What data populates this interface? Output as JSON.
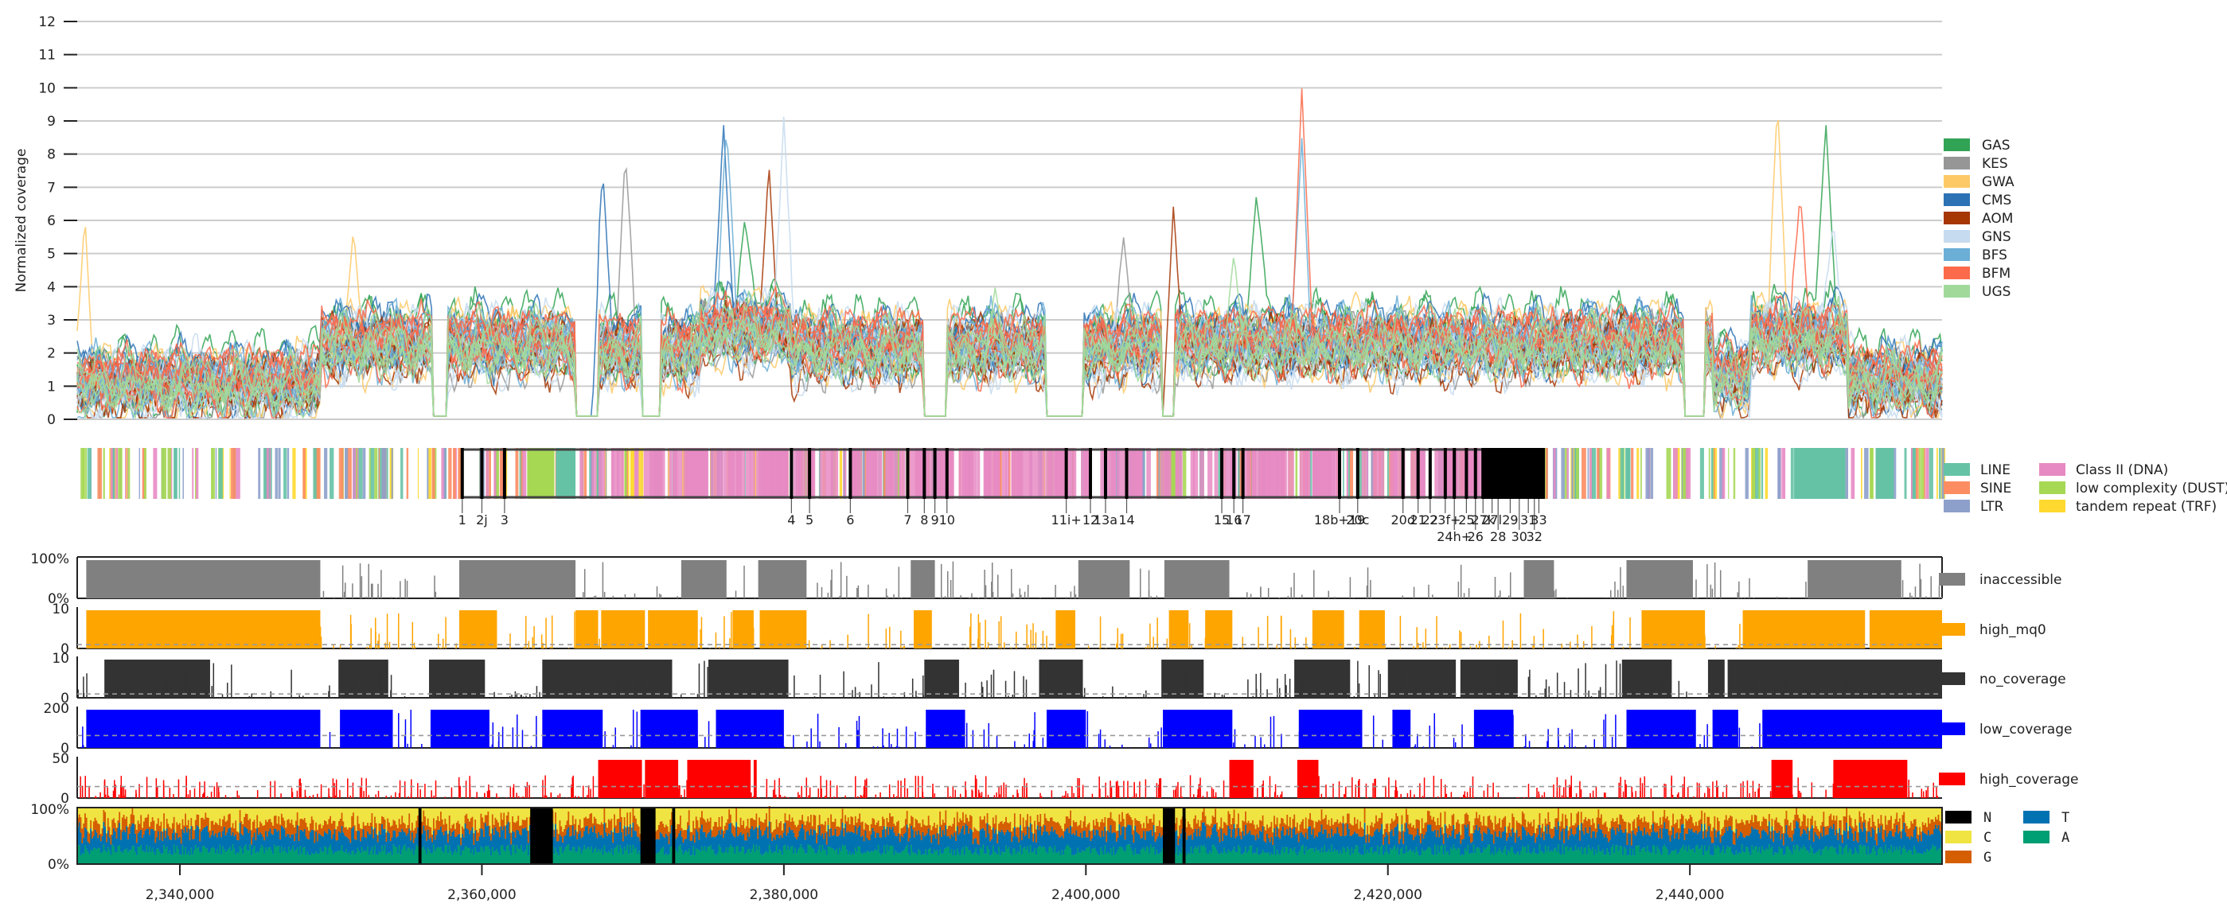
{
  "colors": {
    "GAS": "#31a354",
    "KES": "#969696",
    "GWA": "#fdc966",
    "CMS": "#2c72b5",
    "AOM": "#a63603",
    "GNS": "#c6dbef",
    "BFS": "#6baed6",
    "BFM": "#fb6a4a",
    "UGS": "#a1d99b",
    "LINE": "#66c2a5",
    "SINE": "#fc8d62",
    "LTR": "#8da0cb",
    "Class II (DNA)": "#e78ac3",
    "low complexity (DUST)": "#a6d854",
    "tandem repeat (TRF)": "#ffd92f",
    "inaccessible": "#808080",
    "high_mq0": "#ffa500",
    "no_coverage": "#333333",
    "low_coverage": "#0000ff",
    "high_coverage": "#ff0000",
    "N": "#000000",
    "C": "#f0e442",
    "G": "#d55e00",
    "T": "#0072b2",
    "A": "#009e73"
  },
  "chart_data": [
    {
      "type": "line",
      "ylabel": "Normalized coverage",
      "ylim": [
        0,
        12
      ],
      "yticks": [
        "0",
        "1",
        "2",
        "3",
        "4",
        "5",
        "6",
        "7",
        "8",
        "9",
        "10",
        "11",
        "12"
      ],
      "grid": true,
      "legend_placement": "right",
      "xlim": [
        2333200,
        2456700
      ],
      "series": [
        {
          "name": "GAS",
          "peaks": [
            [
              2411300,
              6.8
            ],
            [
              2449000,
              9.0
            ],
            [
              2377400,
              6.0
            ]
          ]
        },
        {
          "name": "KES",
          "peaks": [
            [
              2369500,
              8.0
            ],
            [
              2402500,
              5.5
            ]
          ]
        },
        {
          "name": "GWA",
          "peaks": [
            [
              2333700,
              6.2
            ],
            [
              2445800,
              9.6
            ],
            [
              2351500,
              5.8
            ]
          ]
        },
        {
          "name": "CMS",
          "peaks": [
            [
              2376000,
              9.0
            ],
            [
              2368000,
              7.5
            ]
          ]
        },
        {
          "name": "AOM",
          "peaks": [
            [
              2379000,
              7.8
            ],
            [
              2405800,
              6.5
            ]
          ]
        },
        {
          "name": "GNS",
          "peaks": [
            [
              2380000,
              9.2
            ],
            [
              2449500,
              6.0
            ]
          ]
        },
        {
          "name": "BFS",
          "peaks": [
            [
              2376200,
              8.8
            ],
            [
              2414300,
              8.5
            ]
          ]
        },
        {
          "name": "BFM",
          "peaks": [
            [
              2414300,
              10.0
            ],
            [
              2447300,
              6.8
            ]
          ]
        },
        {
          "name": "UGS",
          "peaks": [
            [
              2394000,
              4.0
            ],
            [
              2409800,
              5.0
            ]
          ]
        }
      ],
      "dip_regions": [
        [
          2356700,
          2357700
        ],
        [
          2366200,
          2367700
        ],
        [
          2370600,
          2371800
        ],
        [
          2389300,
          2390800
        ],
        [
          2397300,
          2399800
        ],
        [
          2405000,
          2405900
        ],
        [
          2439600,
          2441000
        ]
      ]
    },
    {
      "type": "bar",
      "title": "",
      "legend": [
        "LINE",
        "SINE",
        "LTR",
        "Class II (DNA)",
        "low complexity (DUST)",
        "tandem repeat (TRF)"
      ],
      "gene_box": [
        2358700,
        2427000
      ],
      "features": [
        {
          "label": "1",
          "x": 2358700
        },
        {
          "label": "2j",
          "x": 2360000
        },
        {
          "label": "3",
          "x": 2361500
        },
        {
          "label": "4",
          "x": 2380500
        },
        {
          "label": "5",
          "x": 2381700
        },
        {
          "label": "6",
          "x": 2384400
        },
        {
          "label": "7",
          "x": 2388200
        },
        {
          "label": "8",
          "x": 2389300
        },
        {
          "label": "9",
          "x": 2390000
        },
        {
          "label": "10",
          "x": 2390800
        },
        {
          "label": "11i+",
          "x": 2398700
        },
        {
          "label": "12",
          "x": 2400300
        },
        {
          "label": "13a",
          "x": 2401300
        },
        {
          "label": "14",
          "x": 2402700
        },
        {
          "label": "15",
          "x": 2409000
        },
        {
          "label": "16",
          "x": 2409800
        },
        {
          "label": "17",
          "x": 2410400
        },
        {
          "label": "18b+19",
          "x": 2416800
        },
        {
          "label": "20c",
          "x": 2418000
        },
        {
          "label": "20d",
          "x": 2421000
        },
        {
          "label": "21",
          "x": 2422000
        },
        {
          "label": "22",
          "x": 2422800
        },
        {
          "label": "23f+",
          "x": 2423800
        },
        {
          "label": "24h+",
          "x": 2424400
        },
        {
          "label": "25",
          "x": 2425200
        },
        {
          "label": "26",
          "x": 2425800
        },
        {
          "label": "27k",
          "x": 2426300
        },
        {
          "label": "27l",
          "x": 2426900
        },
        {
          "label": "28",
          "x": 2427300
        },
        {
          "label": "29",
          "x": 2428100
        },
        {
          "label": "30",
          "x": 2428700
        },
        {
          "label": "31",
          "x": 2429300
        },
        {
          "label": "32",
          "x": 2429700
        },
        {
          "label": "33",
          "x": 2430000
        }
      ],
      "repeat_blocks": [
        {
          "type": "low complexity (DUST)",
          "start": 2363000,
          "end": 2364800
        },
        {
          "type": "LINE",
          "start": 2364900,
          "end": 2366200
        },
        {
          "type": "LINE",
          "start": 2446900,
          "end": 2450300
        },
        {
          "type": "Class II (DNA)",
          "start": 2378600,
          "end": 2380300
        },
        {
          "type": "Class II (DNA)",
          "start": 2415000,
          "end": 2416300
        },
        {
          "type": "low complexity (DUST)",
          "start": 2405200,
          "end": 2406200
        },
        {
          "type": "LINE",
          "start": 2452300,
          "end": 2453500
        }
      ]
    },
    {
      "type": "area",
      "name": "inaccessible",
      "ylim": [
        0,
        1
      ],
      "yticks": [
        "0%",
        "100%"
      ],
      "blocks": [
        [
          2333800,
          2349300
        ],
        [
          2358500,
          2366200
        ],
        [
          2373200,
          2376200
        ],
        [
          2378300,
          2381500
        ],
        [
          2388400,
          2390000
        ],
        [
          2399500,
          2402900
        ],
        [
          2405200,
          2409500
        ],
        [
          2429000,
          2431000
        ],
        [
          2435800,
          2440200
        ],
        [
          2447800,
          2454000
        ]
      ]
    },
    {
      "type": "area",
      "name": "high_mq0",
      "ylim": [
        0,
        10
      ],
      "yticks": [
        "0",
        "10"
      ],
      "threshold": 1,
      "blocks": [
        [
          2333800,
          2349300
        ],
        [
          2358500,
          2361000
        ],
        [
          2366200,
          2367700
        ],
        [
          2367900,
          2370800
        ],
        [
          2371000,
          2374300
        ],
        [
          2376600,
          2378000
        ],
        [
          2378400,
          2381500
        ],
        [
          2388600,
          2389800
        ],
        [
          2398000,
          2399300
        ],
        [
          2405500,
          2406800
        ],
        [
          2407900,
          2409700
        ],
        [
          2415000,
          2417100
        ],
        [
          2418100,
          2419800
        ],
        [
          2436800,
          2441000
        ],
        [
          2443500,
          2451600
        ],
        [
          2451900,
          2456700
        ]
      ]
    },
    {
      "type": "area",
      "name": "no_coverage",
      "ylim": [
        0,
        10
      ],
      "yticks": [
        "0",
        "10"
      ],
      "threshold": 1,
      "blocks": [
        [
          2335000,
          2342000
        ],
        [
          2350500,
          2353800
        ],
        [
          2356500,
          2360200
        ],
        [
          2364000,
          2372600
        ],
        [
          2375000,
          2380300
        ],
        [
          2389300,
          2391600
        ],
        [
          2396900,
          2399800
        ],
        [
          2405000,
          2407800
        ],
        [
          2413800,
          2417500
        ],
        [
          2420000,
          2424500
        ],
        [
          2424800,
          2428600
        ],
        [
          2435500,
          2438800
        ],
        [
          2441200,
          2442300
        ],
        [
          2442500,
          2456700
        ]
      ]
    },
    {
      "type": "area",
      "name": "low_coverage",
      "ylim": [
        0,
        200
      ],
      "yticks": [
        "0",
        "200"
      ],
      "threshold": 65,
      "blocks": [
        [
          2333800,
          2349300
        ],
        [
          2350600,
          2354100
        ],
        [
          2356600,
          2360500
        ],
        [
          2364000,
          2368000
        ],
        [
          2370500,
          2374300
        ],
        [
          2375500,
          2380000
        ],
        [
          2389400,
          2392000
        ],
        [
          2397400,
          2400000
        ],
        [
          2405100,
          2409700
        ],
        [
          2414100,
          2418300
        ],
        [
          2420300,
          2421500
        ],
        [
          2425700,
          2428300
        ],
        [
          2435800,
          2440400
        ],
        [
          2441500,
          2443200
        ],
        [
          2444800,
          2456700
        ]
      ]
    },
    {
      "type": "area",
      "name": "high_coverage",
      "ylim": [
        0,
        50
      ],
      "yticks": [
        "0",
        "50"
      ],
      "threshold": 15,
      "blocks": [
        [
          2367700,
          2370600
        ],
        [
          2370800,
          2373000
        ],
        [
          2373600,
          2377800
        ],
        [
          2378000,
          2378200
        ],
        [
          2409500,
          2411100
        ],
        [
          2414000,
          2415400
        ],
        [
          2449500,
          2454400
        ],
        [
          2445400,
          2446800
        ]
      ]
    },
    {
      "type": "area",
      "name": "base composition",
      "ylim": [
        0,
        1
      ],
      "yticks": [
        "0%",
        "100%"
      ],
      "legend": [
        "N",
        "C",
        "G",
        "T",
        "A"
      ],
      "n_blocks": [
        [
          2355800,
          2356000
        ],
        [
          2363200,
          2364700
        ],
        [
          2370500,
          2371500
        ],
        [
          2372600,
          2372800
        ],
        [
          2405100,
          2405900
        ],
        [
          2406400,
          2406600
        ]
      ],
      "mean_fractions": {
        "A": 0.3,
        "T": 0.3,
        "G": 0.2,
        "C": 0.2
      }
    }
  ],
  "xaxis": {
    "ticks": [
      "2,340,000",
      "2,360,000",
      "2,380,000",
      "2,400,000",
      "2,420,000",
      "2,440,000"
    ],
    "values": [
      2340000,
      2360000,
      2380000,
      2400000,
      2420000,
      2440000
    ]
  },
  "legend_coverage": [
    "GAS",
    "KES",
    "GWA",
    "CMS",
    "AOM",
    "GNS",
    "BFS",
    "BFM",
    "UGS"
  ]
}
